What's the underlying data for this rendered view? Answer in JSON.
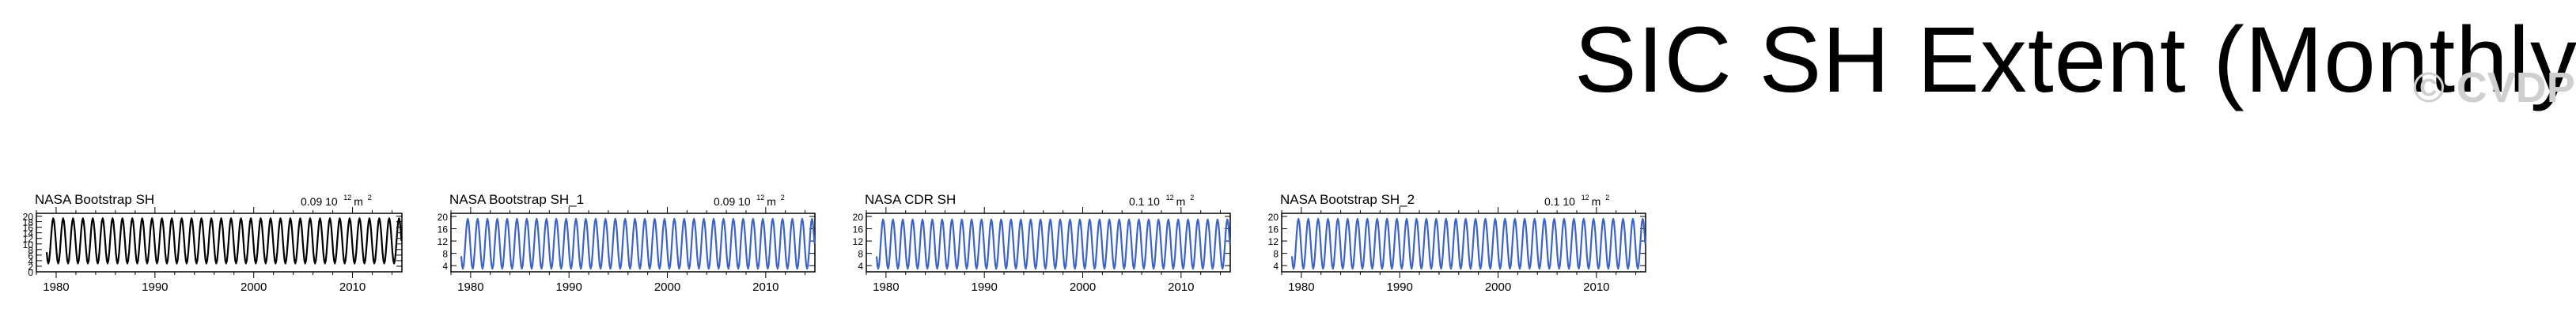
{
  "title": "SIC SH Extent (Monthly)",
  "watermark": "© CVDP",
  "colors": {
    "observed": "#000000",
    "model": "#3b63c9"
  },
  "chart_data": [
    {
      "type": "line",
      "title": "NASA Bootstrap SH",
      "scale_label": "0.09 10",
      "scale_exp": "12",
      "scale_unit": " m",
      "scale_unit_exp": "2",
      "color": "#000000",
      "x_range": [
        1978,
        2015
      ],
      "ylim": [
        0,
        21
      ],
      "y_ticks": [
        0,
        2,
        4,
        6,
        8,
        10,
        12,
        14,
        16,
        18,
        20
      ],
      "x_ticks": [
        1980,
        1990,
        2000,
        2010
      ],
      "series": {
        "start_year": 1979,
        "end_year": 2014,
        "min": 3.0,
        "max": 19.2
      }
    },
    {
      "type": "line",
      "title": "NASA Bootstrap SH_1",
      "scale_label": "0.09 10",
      "scale_exp": "12",
      "scale_unit": " m",
      "scale_unit_exp": "2",
      "color": "#3b63c9",
      "x_range": [
        1978,
        2015
      ],
      "ylim": [
        2,
        21
      ],
      "y_ticks": [
        4,
        8,
        12,
        16,
        20
      ],
      "x_ticks": [
        1980,
        1990,
        2000,
        2010
      ],
      "series": {
        "start_year": 1979,
        "end_year": 2014,
        "min": 3.0,
        "max": 19.2
      }
    },
    {
      "type": "line",
      "title": "NASA CDR SH",
      "scale_label": "0.1 10",
      "scale_exp": "12",
      "scale_unit": " m",
      "scale_unit_exp": "2",
      "color": "#3b63c9",
      "x_range": [
        1978,
        2015
      ],
      "ylim": [
        2,
        21
      ],
      "y_ticks": [
        4,
        8,
        12,
        16,
        20
      ],
      "x_ticks": [
        1980,
        1990,
        2000,
        2010
      ],
      "series": {
        "start_year": 1979,
        "end_year": 2014,
        "min": 3.0,
        "max": 19.0
      }
    },
    {
      "type": "line",
      "title": "NASA Bootstrap SH_2",
      "scale_label": "0.1 10",
      "scale_exp": "12",
      "scale_unit": " m",
      "scale_unit_exp": "2",
      "color": "#3b63c9",
      "x_range": [
        1978,
        2015
      ],
      "ylim": [
        2,
        21
      ],
      "y_ticks": [
        4,
        8,
        12,
        16,
        20
      ],
      "x_ticks": [
        1980,
        1990,
        2000,
        2010
      ],
      "series": {
        "start_year": 1979,
        "end_year": 2014,
        "min": 3.0,
        "max": 19.2
      }
    }
  ]
}
